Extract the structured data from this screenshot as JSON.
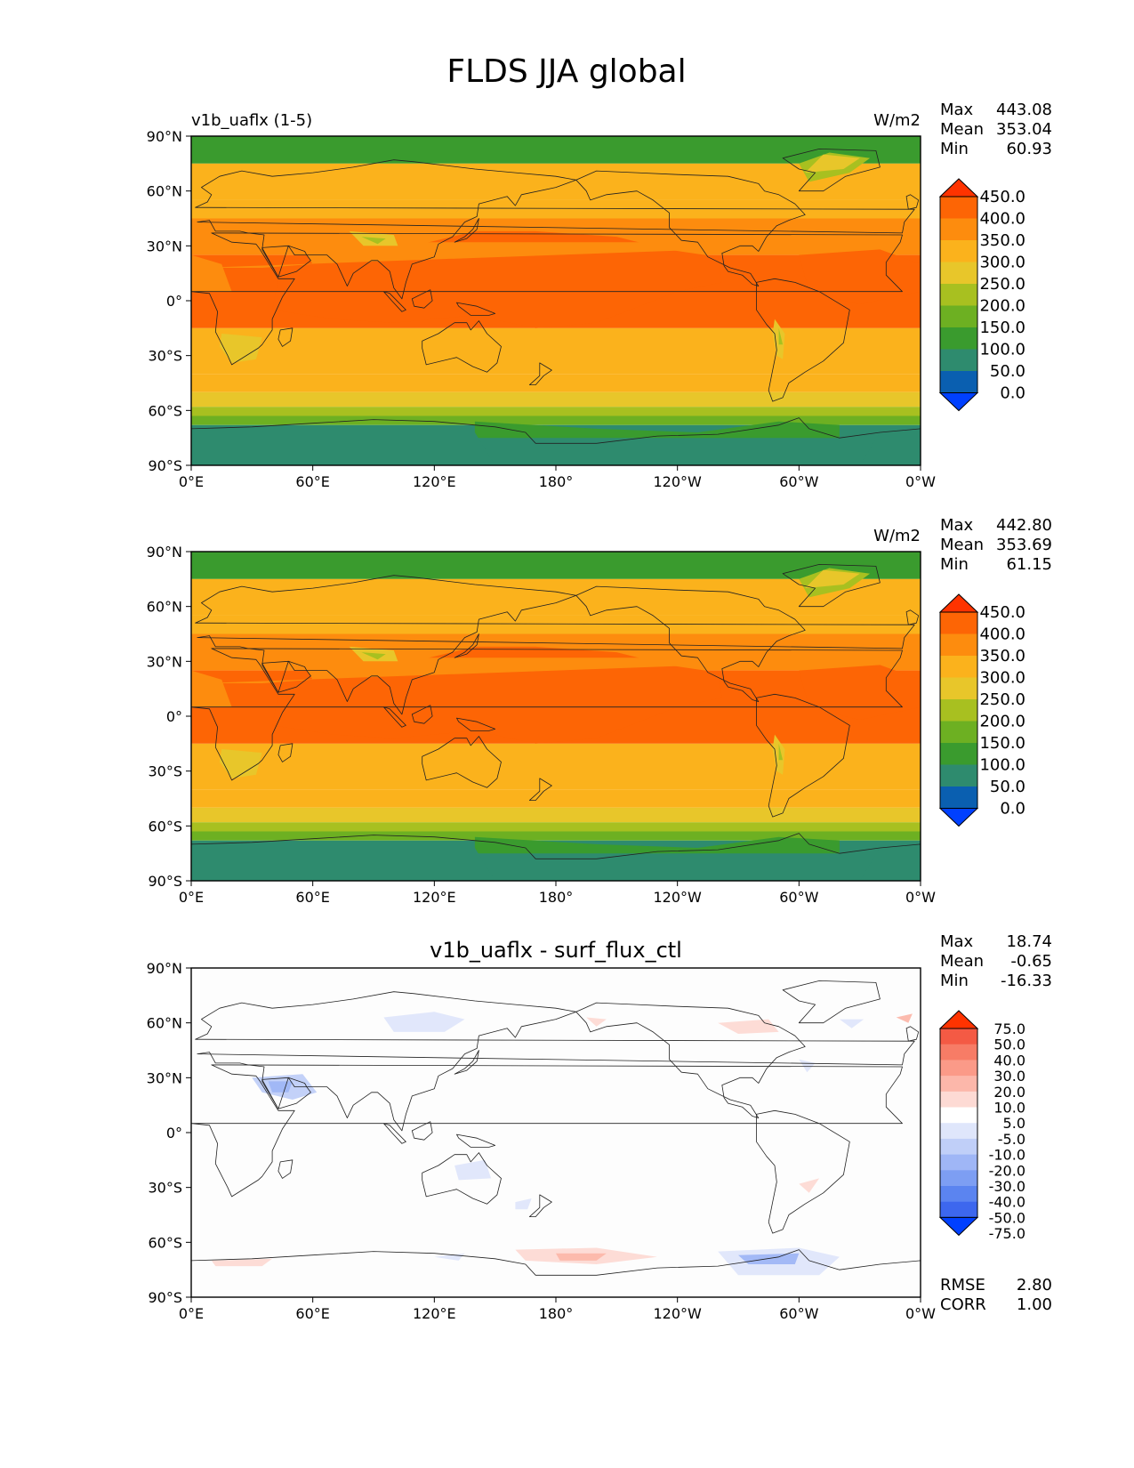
{
  "title": "FLDS JJA global",
  "colors": {
    "abs_levels": [
      "#0040ff",
      "#0a5fb0",
      "#2e8b6e",
      "#3a9b2e",
      "#6db022",
      "#a8c020",
      "#e8c62a",
      "#fbb21c",
      "#fd8c0e",
      "#fd6505",
      "#ff3300"
    ],
    "diff_levels": [
      "#0040ff",
      "#3d67ee",
      "#5b84f0",
      "#7d9ef3",
      "#9fb6f6",
      "#c0cff8",
      "#dfe6fb",
      "#ffffff",
      "#fddad4",
      "#fcb7aa",
      "#fb9a88",
      "#f77c66",
      "#f45a44",
      "#ff3300"
    ],
    "ocean_mid": "#fbb21c",
    "ocean_warm": "#fd6d07",
    "polar": "#2e8b6e",
    "coast": "#222222",
    "axis": "#000000"
  },
  "map_labels": {
    "lat_ticks": [
      "90°N",
      "60°N",
      "30°N",
      "0°",
      "30°S",
      "60°S",
      "90°S"
    ],
    "lon_ticks": [
      "0°E",
      "60°E",
      "120°E",
      "180°",
      "120°W",
      "60°W",
      "0°W"
    ]
  },
  "panels": [
    {
      "left_title": "v1b_uaflx (1-5)",
      "center_title": "",
      "units": "W/m2",
      "stats": [
        {
          "label": "Max",
          "value": "443.08"
        },
        {
          "label": "Mean",
          "value": "353.04"
        },
        {
          "label": "Min",
          "value": "60.93"
        }
      ],
      "colorbar_kind": "abs",
      "colorbar_labels": [
        "450.0",
        "400.0",
        "350.0",
        "300.0",
        "250.0",
        "200.0",
        "150.0",
        "100.0",
        "50.0",
        "0.0"
      ],
      "map_kind": "abs"
    },
    {
      "left_title": "",
      "center_title": "",
      "units": "W/m2",
      "stats": [
        {
          "label": "Max",
          "value": "442.80"
        },
        {
          "label": "Mean",
          "value": "353.69"
        },
        {
          "label": "Min",
          "value": "61.15"
        }
      ],
      "colorbar_kind": "abs",
      "colorbar_labels": [
        "450.0",
        "400.0",
        "350.0",
        "300.0",
        "250.0",
        "200.0",
        "150.0",
        "100.0",
        "50.0",
        "0.0"
      ],
      "map_kind": "abs"
    },
    {
      "left_title": "",
      "center_title": "v1b_uaflx - surf_flux_ctl",
      "units": "",
      "stats": [
        {
          "label": "Max",
          "value": "18.74"
        },
        {
          "label": "Mean",
          "value": "-0.65"
        },
        {
          "label": "Min",
          "value": "-16.33"
        }
      ],
      "colorbar_kind": "diff",
      "colorbar_labels": [
        "75.0",
        "50.0",
        "40.0",
        "30.0",
        "20.0",
        "10.0",
        "5.0",
        "-5.0",
        "-10.0",
        "-20.0",
        "-30.0",
        "-40.0",
        "-50.0",
        "-75.0"
      ],
      "map_kind": "diff",
      "extra_stats": [
        {
          "label": "RMSE",
          "value": "2.80"
        },
        {
          "label": "CORR",
          "value": "1.00"
        }
      ]
    }
  ]
}
